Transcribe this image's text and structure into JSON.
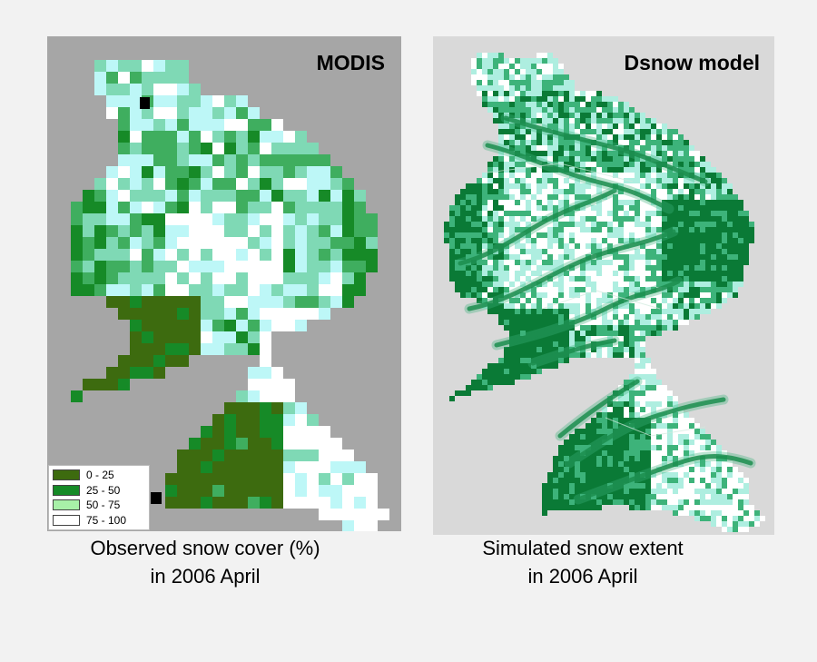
{
  "left_panel": {
    "title": "MODIS",
    "caption_line1": "Observed snow cover (%)",
    "caption_line2": "in 2006 April",
    "legend": [
      {
        "label": "0 - 25",
        "color": "#3d6b0f"
      },
      {
        "label": "25 - 50",
        "color": "#168a27"
      },
      {
        "label": "50 - 75",
        "color": "#a8f0a8"
      },
      {
        "label": "75 - 100",
        "color": "#ffffff"
      }
    ],
    "class_colors": {
      "light_cyan": "#bdf7f7",
      "mint": "#7fd9b5",
      "medium_green": "#3fae5f"
    }
  },
  "right_panel": {
    "title": "Dsnow model",
    "caption_line1": "Simulated snow extent",
    "caption_line2": "in 2006 April",
    "colors": {
      "snow": "#ffffff",
      "light": "#aeeee0",
      "mid": "#3db37a",
      "dark": "#0a7a36"
    }
  }
}
